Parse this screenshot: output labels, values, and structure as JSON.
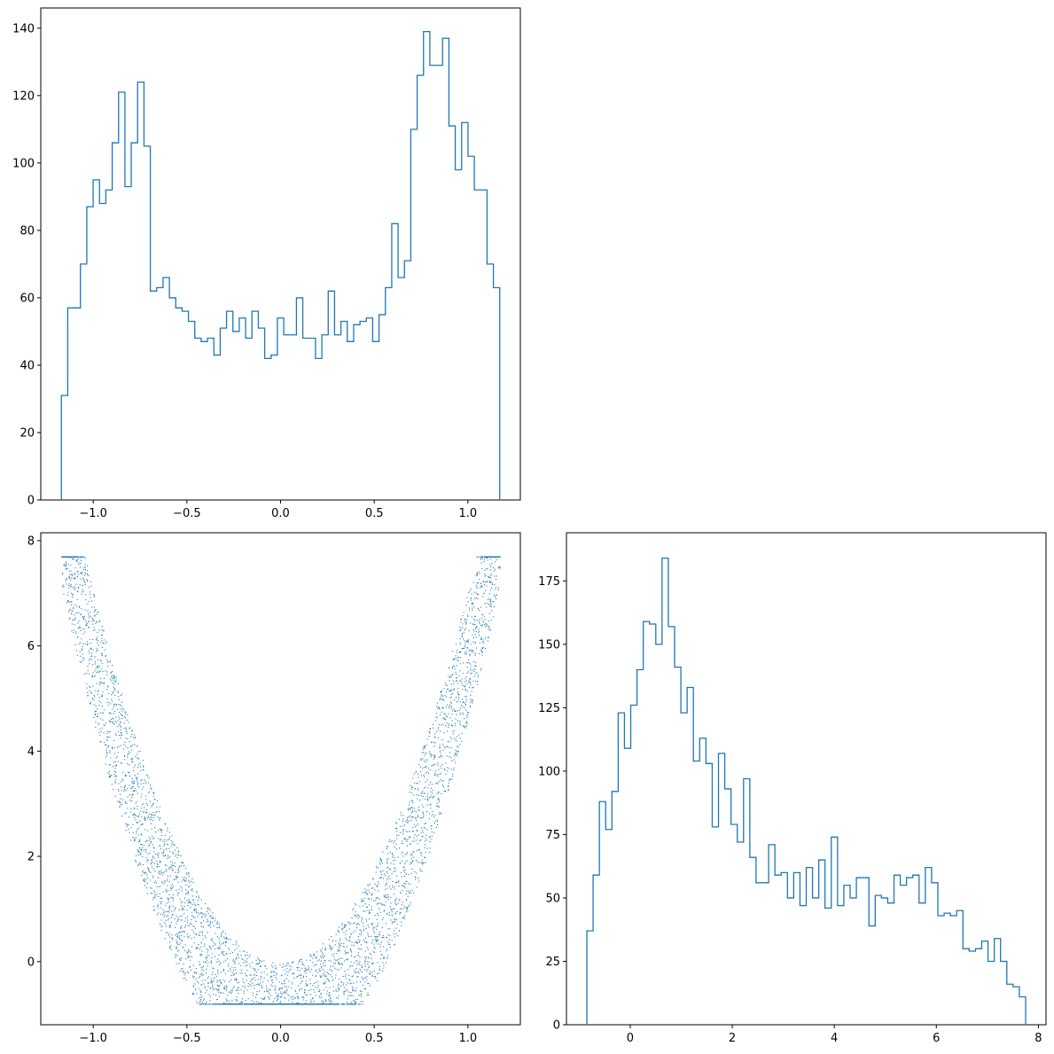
{
  "figure": {
    "type": "corner plot",
    "color": "#1f77b4"
  },
  "chart_data": [
    {
      "type": "histogram",
      "panel": "top-left",
      "xlim": [
        -1.28,
        1.28
      ],
      "ylim": [
        0,
        146
      ],
      "xticks": [
        -1.0,
        -0.5,
        0.0,
        0.5,
        1.0
      ],
      "xtick_labels": [
        "−1.0",
        "−0.5",
        "0.0",
        "0.5",
        "1.0"
      ],
      "yticks": [
        0,
        20,
        40,
        60,
        80,
        100,
        120,
        140
      ],
      "ytick_labels": [
        "0",
        "20",
        "40",
        "60",
        "80",
        "100",
        "120",
        "140"
      ],
      "bins": {
        "start": -1.17,
        "end": 1.17
      },
      "counts": [
        31,
        57,
        57,
        70,
        87,
        95,
        88,
        92,
        106,
        121,
        93,
        106,
        124,
        105,
        62,
        63,
        66,
        60,
        57,
        56,
        53,
        48,
        47,
        48,
        43,
        51,
        56,
        50,
        54,
        48,
        56,
        51,
        42,
        43,
        54,
        49,
        49,
        60,
        48,
        48,
        42,
        49,
        62,
        49,
        53,
        47,
        52,
        53,
        54,
        47,
        55,
        63,
        82,
        66,
        71,
        110,
        126,
        139,
        129,
        129,
        137,
        111,
        98,
        112,
        102,
        92,
        92,
        70,
        63
      ]
    },
    {
      "type": "scatter",
      "panel": "bottom-left",
      "xlim": [
        -1.28,
        1.28
      ],
      "ylim": [
        -1.2,
        8.15
      ],
      "xticks": [
        -1.0,
        -0.5,
        0.0,
        0.5,
        1.0
      ],
      "xtick_labels": [
        "−1.0",
        "−0.5",
        "0.0",
        "0.5",
        "1.0"
      ],
      "yticks": [
        0,
        2,
        4,
        6,
        8
      ],
      "ytick_labels": [
        "0",
        "2",
        "4",
        "6",
        "8"
      ],
      "shape": {
        "curve": "y = 7*x^2 - 0.45*t",
        "x_range": [
          -1.17,
          1.17
        ],
        "t_range": [
          -0.8,
          0.85
        ],
        "points": 5000
      }
    },
    {
      "type": "histogram",
      "panel": "bottom-right",
      "xlim": [
        -1.25,
        8.15
      ],
      "ylim": [
        0,
        194
      ],
      "xticks": [
        0,
        2,
        4,
        6,
        8
      ],
      "xtick_labels": [
        "0",
        "2",
        "4",
        "6",
        "8"
      ],
      "yticks": [
        0,
        25,
        50,
        75,
        100,
        125,
        150,
        175
      ],
      "ytick_labels": [
        "0",
        "25",
        "50",
        "75",
        "100",
        "125",
        "150",
        "175"
      ],
      "bins": {
        "start": -0.85,
        "end": 7.75
      },
      "counts": [
        37,
        59,
        88,
        77,
        92,
        123,
        109,
        126,
        140,
        159,
        158,
        150,
        184,
        157,
        141,
        123,
        133,
        104,
        113,
        103,
        78,
        107,
        93,
        79,
        72,
        97,
        66,
        56,
        56,
        71,
        59,
        60,
        50,
        60,
        47,
        62,
        50,
        65,
        46,
        74,
        47,
        55,
        50,
        58,
        58,
        39,
        51,
        50,
        48,
        59,
        55,
        58,
        59,
        48,
        62,
        56,
        43,
        44,
        43,
        45,
        30,
        29,
        30,
        33,
        25,
        34,
        25,
        16,
        15,
        11
      ]
    }
  ]
}
